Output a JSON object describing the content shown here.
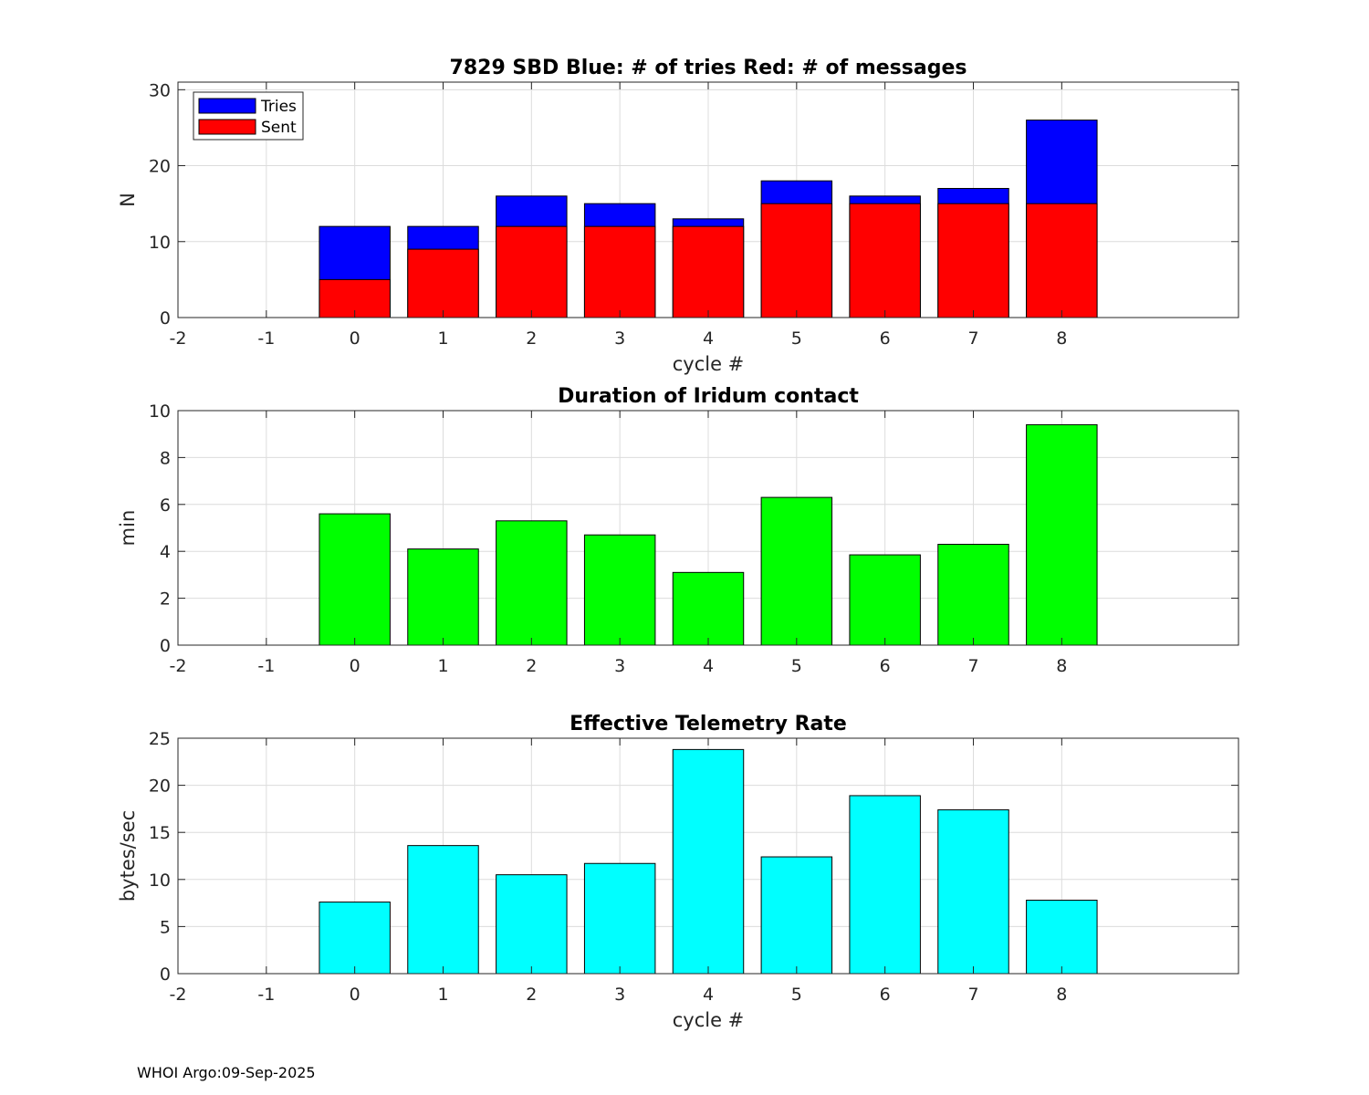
{
  "footer": "WHOI Argo:09-Sep-2025",
  "chart_data": [
    {
      "type": "bar",
      "title": "7829 SBD  Blue: # of tries   Red: # of messages",
      "xlabel": "cycle #",
      "ylabel": "N",
      "xlim": [
        -2,
        10
      ],
      "xticks": [
        -2,
        -1,
        0,
        1,
        2,
        3,
        4,
        5,
        6,
        7,
        8
      ],
      "ylim": [
        0,
        31
      ],
      "yticks": [
        0,
        10,
        20,
        30
      ],
      "grid": true,
      "categories": [
        0,
        1,
        2,
        3,
        4,
        5,
        6,
        7,
        8
      ],
      "series": [
        {
          "name": "Tries",
          "color": "#0000ff",
          "values": [
            12,
            12,
            16,
            15,
            13,
            18,
            16,
            17,
            26
          ]
        },
        {
          "name": "Sent",
          "color": "#ff0000",
          "values": [
            5,
            9,
            12,
            12,
            12,
            15,
            15,
            15,
            15
          ]
        }
      ],
      "legend": {
        "position": "top-left",
        "entries": [
          "Tries",
          "Sent"
        ]
      }
    },
    {
      "type": "bar",
      "title": "Duration of Iridum contact",
      "xlabel": "",
      "ylabel": "min",
      "xlim": [
        -2,
        10
      ],
      "xticks": [
        -2,
        -1,
        0,
        1,
        2,
        3,
        4,
        5,
        6,
        7,
        8
      ],
      "ylim": [
        0,
        10
      ],
      "yticks": [
        0,
        2,
        4,
        6,
        8,
        10
      ],
      "grid": true,
      "categories": [
        0,
        1,
        2,
        3,
        4,
        5,
        6,
        7,
        8
      ],
      "series": [
        {
          "name": "Duration",
          "color": "#00ff00",
          "values": [
            5.6,
            4.1,
            5.3,
            4.7,
            3.1,
            6.3,
            3.85,
            4.3,
            9.4
          ]
        }
      ]
    },
    {
      "type": "bar",
      "title": "Effective Telemetry Rate",
      "xlabel": "cycle #",
      "ylabel": "bytes/sec",
      "xlim": [
        -2,
        10
      ],
      "xticks": [
        -2,
        -1,
        0,
        1,
        2,
        3,
        4,
        5,
        6,
        7,
        8
      ],
      "ylim": [
        0,
        25
      ],
      "yticks": [
        0,
        5,
        10,
        15,
        20,
        25
      ],
      "grid": true,
      "categories": [
        0,
        1,
        2,
        3,
        4,
        5,
        6,
        7,
        8
      ],
      "series": [
        {
          "name": "Rate",
          "color": "#00ffff",
          "values": [
            7.6,
            13.6,
            10.5,
            11.7,
            23.8,
            12.4,
            18.9,
            17.4,
            7.8
          ]
        }
      ]
    }
  ]
}
